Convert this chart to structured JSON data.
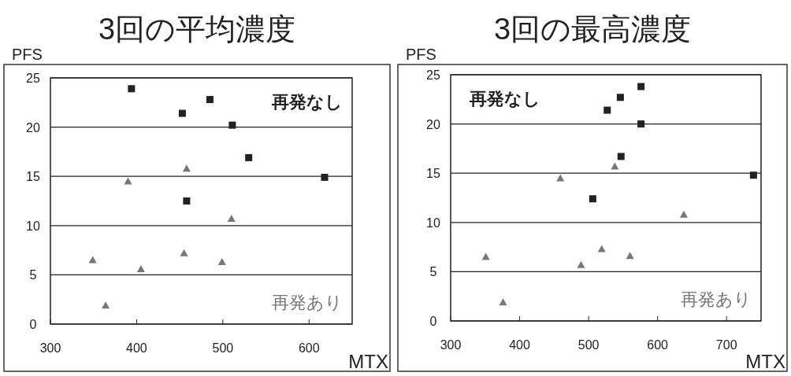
{
  "chart_data": [
    {
      "type": "scatter",
      "title": "3回の平均濃度",
      "xlabel": "MTX",
      "ylabel": "PFS",
      "xlim": [
        300,
        650
      ],
      "xticks": [
        300,
        400,
        500,
        600
      ],
      "ylim": [
        0,
        25
      ],
      "yticks": [
        0,
        5,
        10,
        15,
        20,
        25
      ],
      "grid": "y",
      "series": [
        {
          "name": "再発なし",
          "color": "#222222",
          "marker": "square",
          "x": [
            394,
            453,
            485,
            511,
            530,
            618,
            458
          ],
          "values": [
            23.9,
            21.4,
            22.8,
            20.2,
            16.9,
            14.9,
            12.5
          ]
        },
        {
          "name": "再発あり",
          "color": "#777777",
          "marker": "triangle",
          "x": [
            390,
            458,
            510,
            349,
            405,
            455,
            499,
            364
          ],
          "values": [
            14.5,
            15.8,
            10.7,
            6.5,
            5.6,
            7.2,
            6.3,
            1.9
          ]
        }
      ]
    },
    {
      "type": "scatter",
      "title": "3回の最高濃度",
      "xlabel": "MTX",
      "ylabel": "PFS",
      "xlim": [
        300,
        750
      ],
      "xticks": [
        300,
        400,
        500,
        600,
        700
      ],
      "ylim": [
        0,
        25
      ],
      "yticks": [
        0,
        5,
        10,
        15,
        20,
        25
      ],
      "grid": "y",
      "series": [
        {
          "name": "再発なし",
          "color": "#222222",
          "marker": "square",
          "x": [
            576,
            546,
            527,
            576,
            547,
            506,
            739
          ],
          "values": [
            23.8,
            22.7,
            21.4,
            20.0,
            16.7,
            12.4,
            14.8
          ]
        },
        {
          "name": "再発あり",
          "color": "#777777",
          "marker": "triangle",
          "x": [
            459,
            538,
            638,
            351,
            376,
            489,
            519,
            560
          ],
          "values": [
            14.5,
            15.7,
            10.8,
            6.5,
            1.9,
            5.7,
            7.3,
            6.6
          ]
        }
      ]
    }
  ]
}
